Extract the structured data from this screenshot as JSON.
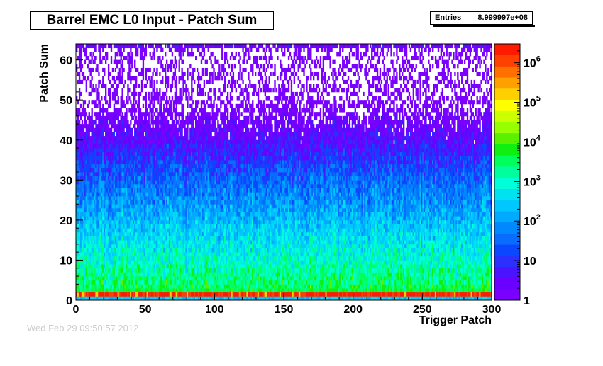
{
  "title": "Barrel EMC L0 Input - Patch Sum",
  "stats": {
    "label": "Entries",
    "value": "8.999997e+08"
  },
  "footer_timestamp": "Wed Feb 29 09:50:57 2012",
  "colors": {
    "palette": [
      "#7a00ff",
      "#6a00ff",
      "#4a14ff",
      "#2b30ff",
      "#0a48ff",
      "#0a6cff",
      "#0088ff",
      "#00aaff",
      "#00c8ff",
      "#00e2f0",
      "#00ffd8",
      "#00ff9c",
      "#00ff5a",
      "#10f010",
      "#5af000",
      "#98ff00",
      "#ccff00",
      "#ffff00",
      "#ffd000",
      "#ffa000",
      "#ff7000",
      "#ff4000",
      "#ff1a00"
    ]
  },
  "chart_data": {
    "type": "heatmap",
    "title": "Barrel EMC L0 Input - Patch Sum",
    "xlabel": "Trigger Patch",
    "ylabel": "Patch Sum",
    "xlim": [
      0,
      300
    ],
    "ylim": [
      0,
      64
    ],
    "x_ticks": [
      "0",
      "50",
      "100",
      "150",
      "200",
      "250",
      "300"
    ],
    "y_ticks": [
      "0",
      "10",
      "20",
      "30",
      "40",
      "50",
      "60"
    ],
    "z_scale": "log",
    "zlim": [
      1,
      3000000
    ],
    "z_ticks": [
      "1",
      "10",
      "10^2",
      "10^3",
      "10^4",
      "10^5",
      "10^6"
    ],
    "entries": 899999700,
    "description_values": {
      "row_1_counts_approx": 2000000,
      "row_0_counts_approx": 1000,
      "counts_at_patch_sum_5": 5000,
      "counts_at_patch_sum_10": 2000,
      "counts_at_patch_sum_20": 300,
      "counts_at_patch_sum_30": 40,
      "counts_at_patch_sum_40": 5,
      "counts_at_patch_sum_50": 2,
      "counts_at_patch_sum_63": 2
    }
  }
}
